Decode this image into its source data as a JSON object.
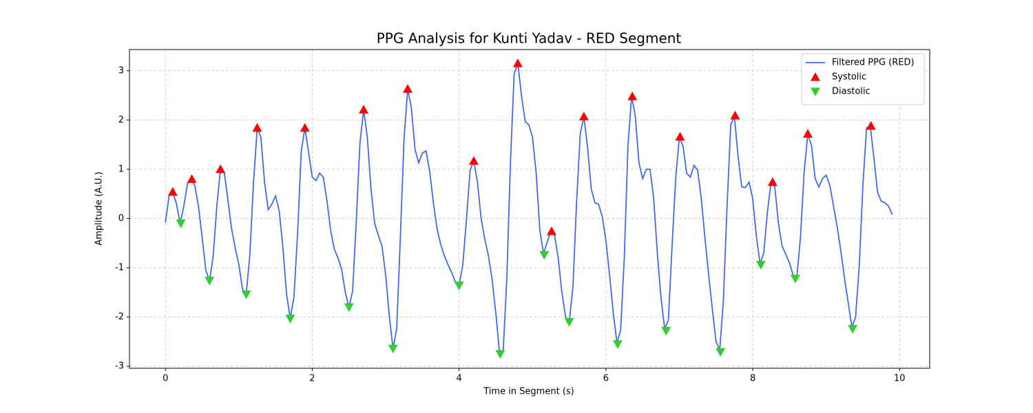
{
  "chart_data": {
    "type": "line",
    "title": "PPG Analysis for Kunti Yadav - RED Segment",
    "x_label": "Time in Segment (s)",
    "y_label": "Amplitude (A.U.)",
    "xlim": [
      -0.49,
      10.41
    ],
    "ylim": [
      -3.04,
      3.43
    ],
    "xticks": [
      0,
      2,
      4,
      6,
      8,
      10
    ],
    "yticks": [
      -3,
      -2,
      -1,
      0,
      1,
      2,
      3
    ],
    "grid": true,
    "legend": "upper right",
    "series": [
      {
        "name": "Filtered PPG (RED)",
        "color": "#4169e1",
        "marker": "line",
        "x": [
          0,
          0.05,
          0.1,
          0.15,
          0.2,
          0.25,
          0.3,
          0.35,
          0.4,
          0.45,
          0.5,
          0.55,
          0.6,
          0.65,
          0.7,
          0.75,
          0.8,
          0.85,
          0.9,
          0.95,
          1,
          1.05,
          1.1,
          1.15,
          1.2,
          1.25,
          1.3,
          1.35,
          1.4,
          1.45,
          1.5,
          1.55,
          1.6,
          1.65,
          1.7,
          1.75,
          1.8,
          1.85,
          1.9,
          1.95,
          2,
          2.05,
          2.1,
          2.15,
          2.2,
          2.25,
          2.3,
          2.35,
          2.4,
          2.45,
          2.5,
          2.55,
          2.6,
          2.65,
          2.7,
          2.75,
          2.8,
          2.85,
          2.9,
          2.95,
          3,
          3.05,
          3.1,
          3.15,
          3.2,
          3.25,
          3.3,
          3.35,
          3.4,
          3.45,
          3.5,
          3.55,
          3.6,
          3.65,
          3.7,
          3.75,
          3.8,
          3.85,
          3.9,
          3.95,
          4,
          4.05,
          4.1,
          4.15,
          4.2,
          4.25,
          4.3,
          4.35,
          4.4,
          4.45,
          4.5,
          4.55,
          4.6,
          4.65,
          4.7,
          4.75,
          4.8,
          4.85,
          4.9,
          4.95,
          5,
          5.05,
          5.1,
          5.15,
          5.2,
          5.25,
          5.3,
          5.35,
          5.4,
          5.45,
          5.5,
          5.55,
          5.6,
          5.65,
          5.7,
          5.75,
          5.8,
          5.85,
          5.9,
          5.95,
          6,
          6.05,
          6.1,
          6.15,
          6.2,
          6.25,
          6.3,
          6.35,
          6.4,
          6.45,
          6.5,
          6.55,
          6.6,
          6.65,
          6.7,
          6.75,
          6.8,
          6.85,
          6.9,
          6.95,
          7,
          7.05,
          7.1,
          7.15,
          7.2,
          7.25,
          7.3,
          7.35,
          7.4,
          7.45,
          7.5,
          7.55,
          7.6,
          7.65,
          7.7,
          7.75,
          7.8,
          7.85,
          7.9,
          7.95,
          8,
          8.05,
          8.1,
          8.15,
          8.2,
          8.25,
          8.3,
          8.35,
          8.4,
          8.45,
          8.5,
          8.55,
          8.6,
          8.65,
          8.7,
          8.75,
          8.8,
          8.85,
          8.9,
          8.95,
          9,
          9.05,
          9.1,
          9.15,
          9.2,
          9.25,
          9.3,
          9.35,
          9.4,
          9.45,
          9.5,
          9.55,
          9.6,
          9.65,
          9.7,
          9.75,
          9.8,
          9.85,
          9.9
        ],
        "values": [
          -0.08,
          0.46,
          0.54,
          0.3,
          -0.1,
          0.25,
          0.7,
          0.8,
          0.67,
          0.25,
          -0.38,
          -1.05,
          -1.26,
          -0.77,
          0.25,
          1.0,
          0.95,
          0.39,
          -0.2,
          -0.59,
          -0.94,
          -1.43,
          -1.54,
          -0.73,
          0.74,
          1.84,
          1.65,
          0.74,
          0.18,
          0.29,
          0.46,
          0.15,
          -0.59,
          -1.54,
          -2.03,
          -1.6,
          -0.31,
          1.37,
          1.84,
          1.34,
          0.84,
          0.77,
          0.92,
          0.84,
          0.36,
          -0.24,
          -0.62,
          -0.8,
          -1.03,
          -1.5,
          -1.8,
          -1.47,
          -0.03,
          1.54,
          2.21,
          1.65,
          0.6,
          -0.1,
          -0.34,
          -0.56,
          -1.15,
          -1.99,
          -2.64,
          -2.24,
          -0.38,
          1.62,
          2.63,
          2.24,
          1.4,
          1.13,
          1.33,
          1.37,
          0.95,
          0.32,
          -0.21,
          -0.53,
          -0.76,
          -0.94,
          -1.1,
          -1.29,
          -1.36,
          -0.94,
          -0.03,
          0.98,
          1.17,
          0.74,
          0,
          -0.42,
          -0.76,
          -1.24,
          -1.92,
          -2.71,
          -2.71,
          -1.22,
          1.16,
          2.94,
          3.15,
          2.49,
          1.97,
          1.9,
          1.65,
          0.92,
          -0.24,
          -0.71,
          -0.48,
          -0.24,
          -0.34,
          -0.8,
          -1.5,
          -1.99,
          -2.1,
          -1.4,
          0.32,
          1.72,
          2.07,
          1.44,
          0.6,
          0.32,
          0.29,
          0.04,
          -0.45,
          -1.15,
          -1.92,
          -2.52,
          -2.27,
          -0.8,
          1.47,
          2.49,
          2.07,
          1.13,
          0.81,
          1.0,
          1.0,
          0.42,
          -0.7,
          -1.61,
          -2.24,
          -2.07,
          -0.59,
          0.81,
          1.65,
          1.47,
          0.92,
          0.84,
          1.08,
          0.98,
          0.39,
          -0.42,
          -1.15,
          -1.85,
          -2.5,
          -2.67,
          -1.66,
          0.25,
          1.9,
          2.07,
          1.26,
          0.64,
          0.63,
          0.74,
          0.39,
          -0.38,
          -0.91,
          -0.7,
          0.14,
          0.74,
          0.64,
          -0.1,
          -0.56,
          -0.73,
          -0.9,
          -1.15,
          -1.2,
          -0.38,
          0.95,
          1.72,
          1.48,
          0.81,
          0.64,
          0.81,
          0.88,
          0.67,
          0.25,
          -0.17,
          -0.66,
          -1.22,
          -1.71,
          -2.2,
          -2.01,
          -0.98,
          0.67,
          1.84,
          1.88,
          1.23,
          0.53,
          0.35,
          0.32,
          0.25,
          0.08
        ]
      },
      {
        "name": "Systolic",
        "color": "#ff0000",
        "marker": "triangle-up",
        "x": [
          0.1,
          0.36,
          0.75,
          1.25,
          1.9,
          2.7,
          3.3,
          4.2,
          4.8,
          5.26,
          5.7,
          6.36,
          7.01,
          7.76,
          8.27,
          8.75,
          9.61
        ],
        "values": [
          0.54,
          0.8,
          1.0,
          1.84,
          1.84,
          2.21,
          2.63,
          1.17,
          3.15,
          -0.26,
          2.07,
          2.48,
          1.66,
          2.09,
          0.74,
          1.72,
          1.88
        ]
      },
      {
        "name": "Diastolic",
        "color": "#32cd32",
        "marker": "triangle-down",
        "x": [
          0.21,
          0.6,
          1.1,
          1.7,
          2.5,
          3.1,
          4.0,
          4.56,
          5.16,
          5.5,
          6.16,
          6.82,
          7.56,
          8.11,
          8.58,
          9.36
        ],
        "values": [
          -0.1,
          -1.26,
          -1.54,
          -2.03,
          -1.8,
          -2.64,
          -1.36,
          -2.75,
          -0.74,
          -2.1,
          -2.55,
          -2.28,
          -2.71,
          -0.94,
          -1.22,
          -2.24
        ]
      }
    ]
  }
}
